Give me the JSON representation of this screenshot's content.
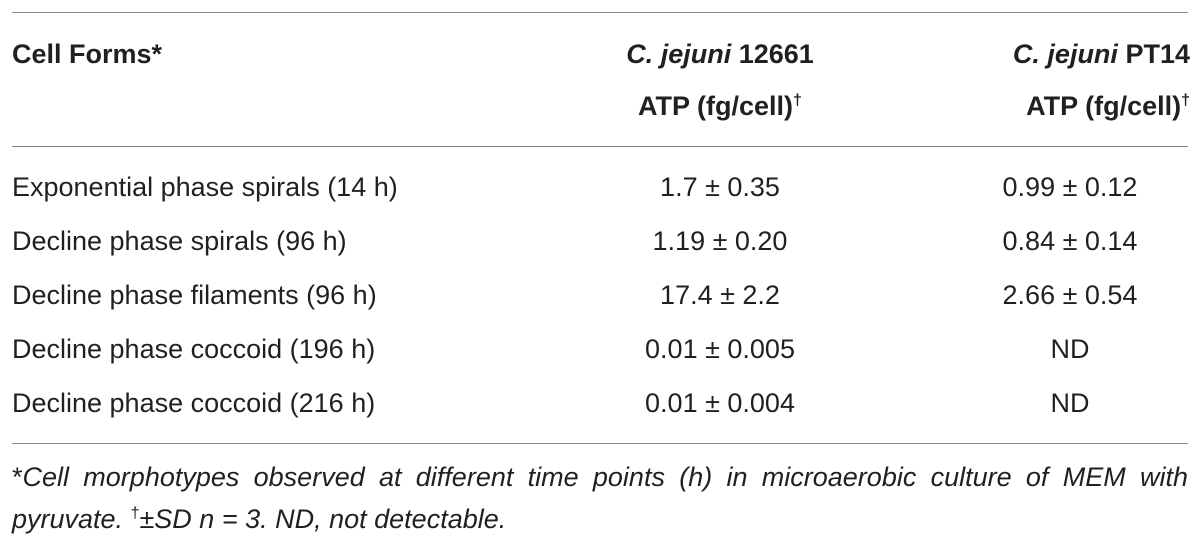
{
  "table": {
    "header": [
      {
        "text": "Cell Forms",
        "mark": "*"
      },
      {
        "species": "C. jejuni",
        "strain": "12661",
        "unit": "ATP (fg/cell)",
        "mark": "†"
      },
      {
        "species": "C. jejuni",
        "strain": "PT14",
        "unit": "ATP (fg/cell)",
        "mark": "†"
      }
    ],
    "rows": [
      [
        "Exponential phase spirals (14 h)",
        "1.7 ± 0.35",
        "0.99 ± 0.12"
      ],
      [
        "Decline phase spirals (96 h)",
        "1.19 ± 0.20",
        "0.84 ± 0.14"
      ],
      [
        "Decline phase filaments (96 h)",
        "17.4 ± 2.2",
        "2.66 ± 0.54"
      ],
      [
        "Decline phase coccoid (196 h)",
        "0.01 ± 0.005",
        "ND"
      ],
      [
        "Decline phase coccoid (216 h)",
        "0.01 ± 0.004",
        "ND"
      ]
    ],
    "footnote": {
      "star": "*",
      "text1": "Cell morphotypes observed at different time points (h) in microaerobic culture of MEM with pyruvate.",
      "dagger": "†",
      "text2": "±SD n = 3. ND, not detectable."
    }
  }
}
